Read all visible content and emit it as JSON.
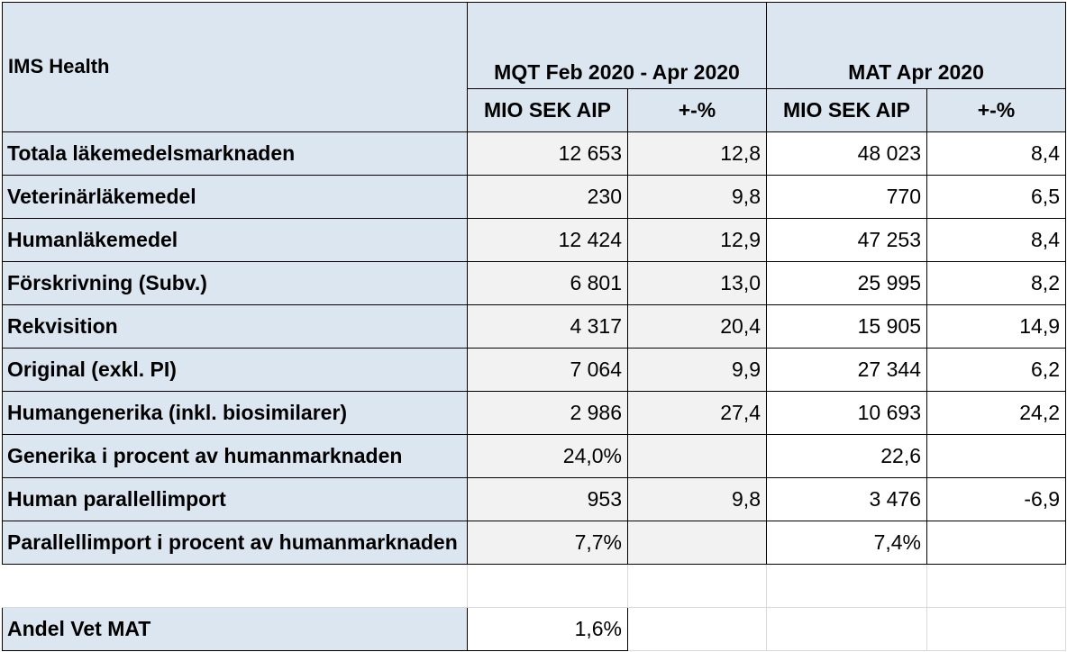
{
  "header": {
    "title": "IMS Health",
    "group1": "MQT Feb 2020 - Apr 2020",
    "group2": "MAT Apr 2020",
    "col_value": "MIO SEK AIP",
    "col_change": "+-%"
  },
  "rows": [
    {
      "label": "Totala läkemedelsmarknaden",
      "q_val": "12 653",
      "q_pct": "12,8",
      "m_val": "48 023",
      "m_pct": "8,4"
    },
    {
      "label": "Veterinärläkemedel",
      "q_val": "230",
      "q_pct": "9,8",
      "m_val": "770",
      "m_pct": "6,5"
    },
    {
      "label": "Humanläkemedel",
      "q_val": "12 424",
      "q_pct": "12,9",
      "m_val": "47 253",
      "m_pct": "8,4"
    },
    {
      "label": "Förskrivning (Subv.)",
      "q_val": "6 801",
      "q_pct": "13,0",
      "m_val": "25 995",
      "m_pct": "8,2"
    },
    {
      "label": "Rekvisition",
      "q_val": "4 317",
      "q_pct": "20,4",
      "m_val": "15 905",
      "m_pct": "14,9"
    },
    {
      "label": "Original (exkl. PI)",
      "q_val": "7 064",
      "q_pct": "9,9",
      "m_val": "27 344",
      "m_pct": "6,2"
    },
    {
      "label": "Humangenerika (inkl. biosimilarer)",
      "q_val": "2 986",
      "q_pct": "27,4",
      "m_val": "10 693",
      "m_pct": "24,2"
    },
    {
      "label": "Generika i procent av humanmarknaden",
      "q_val": "24,0%",
      "q_pct": "",
      "m_val": "22,6",
      "m_pct": ""
    },
    {
      "label": "Human parallellimport",
      "q_val": "953",
      "q_pct": "9,8",
      "m_val": "3 476",
      "m_pct": "-6,9"
    },
    {
      "label": "Parallellimport i procent av humanmarknaden",
      "q_val": "7,7%",
      "q_pct": "",
      "m_val": "7,4%",
      "m_pct": ""
    }
  ],
  "footer": {
    "label": "Andel Vet MAT",
    "value": "1,6%"
  }
}
